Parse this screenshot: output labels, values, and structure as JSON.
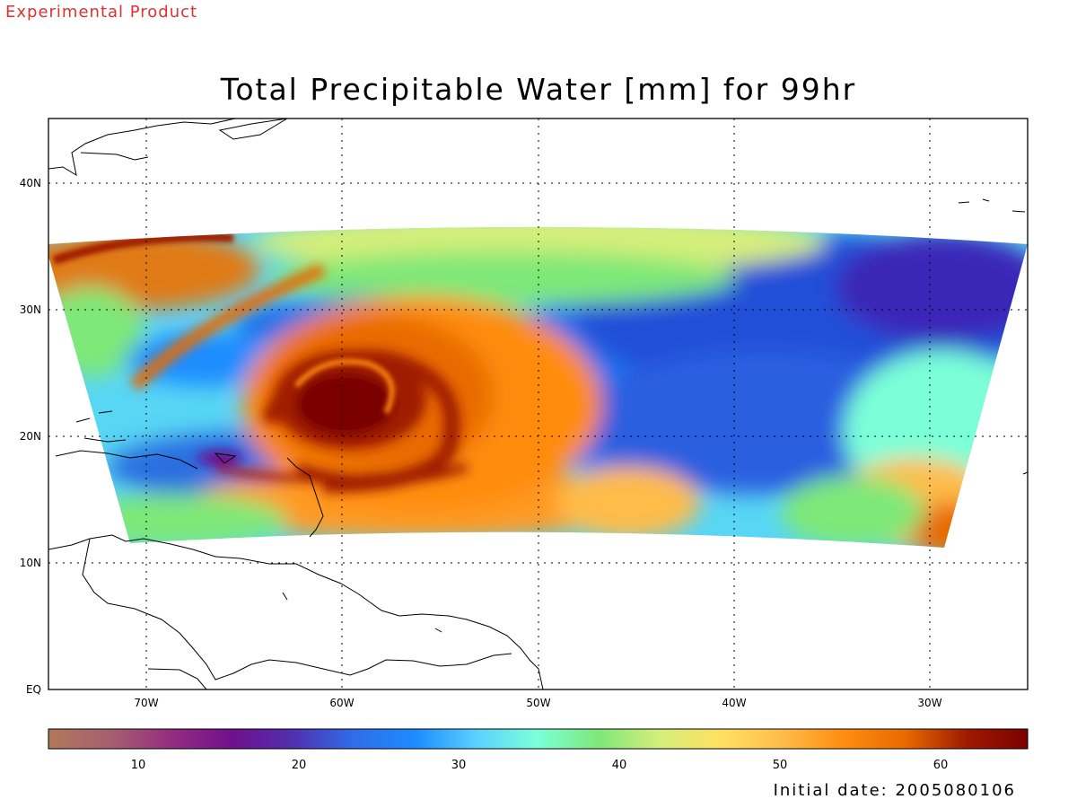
{
  "header": {
    "badge": "Experimental Product",
    "badge_color": "#e03030"
  },
  "title": "Total Precipitable Water [mm] for 99hr",
  "map": {
    "lat_labels": [
      "40N",
      "30N",
      "20N",
      "10N",
      "EQ"
    ],
    "lon_labels": [
      "70W",
      "60W",
      "50W",
      "40W",
      "30W"
    ],
    "grid": "dotted",
    "feature": "hurricane vortex near 23N 60W"
  },
  "colorbar": {
    "min": 5,
    "max": 66,
    "tick_labels": [
      "10",
      "20",
      "30",
      "40",
      "50",
      "60"
    ],
    "colors": [
      "#b0785a",
      "#a66070",
      "#962d80",
      "#70108c",
      "#5030b0",
      "#2f6ee8",
      "#1c8cff",
      "#5ad2ff",
      "#7cffd8",
      "#7ee878",
      "#d6ee7a",
      "#ffe060",
      "#ffbc48",
      "#ff8c10",
      "#e86a00",
      "#a01a00",
      "#7a0000"
    ]
  },
  "footer": {
    "initial_date": "Initial date: 2005080106"
  }
}
